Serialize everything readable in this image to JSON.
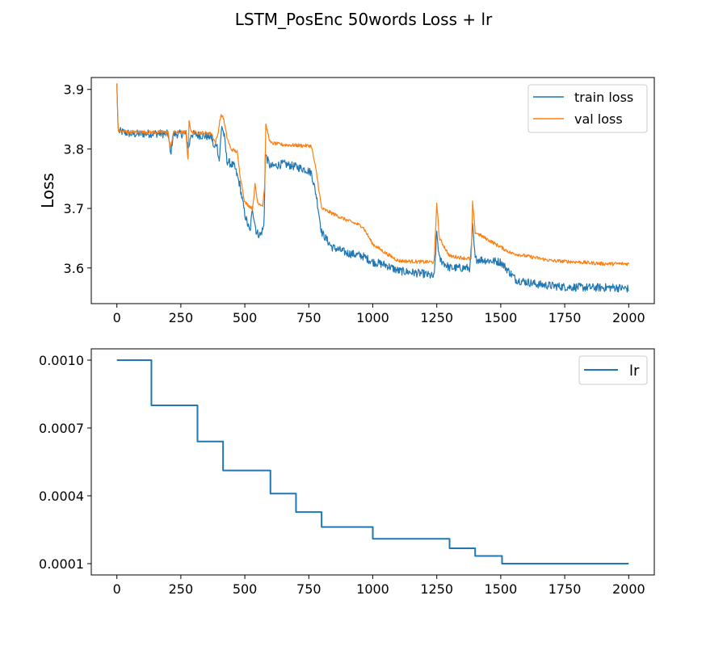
{
  "figure": {
    "title": "LSTM_PosEnc 50words Loss + lr"
  },
  "chart_data": [
    {
      "type": "line",
      "ylabel": "Loss",
      "xlabel": "",
      "xlim": [
        -100,
        2100
      ],
      "ylim": [
        3.54,
        3.92
      ],
      "x_ticks": [
        0,
        250,
        500,
        750,
        1000,
        1250,
        1500,
        1750,
        2000
      ],
      "y_ticks": [
        3.6,
        3.7,
        3.8,
        3.9
      ],
      "y_tick_labels": [
        "3.6",
        "3.7",
        "3.8",
        "3.9"
      ],
      "legend_position": "top-right",
      "series": [
        {
          "name": "train loss",
          "color": "#1f77b4",
          "noise": 0.007,
          "points": [
            [
              0,
              3.91
            ],
            [
              5,
              3.83
            ],
            [
              60,
              3.825
            ],
            [
              150,
              3.826
            ],
            [
              200,
              3.825
            ],
            [
              210,
              3.79
            ],
            [
              220,
              3.825
            ],
            [
              270,
              3.825
            ],
            [
              280,
              3.8
            ],
            [
              290,
              3.825
            ],
            [
              370,
              3.82
            ],
            [
              380,
              3.8
            ],
            [
              390,
              3.81
            ],
            [
              400,
              3.78
            ],
            [
              410,
              3.84
            ],
            [
              420,
              3.82
            ],
            [
              430,
              3.78
            ],
            [
              460,
              3.77
            ],
            [
              480,
              3.74
            ],
            [
              500,
              3.69
            ],
            [
              520,
              3.66
            ],
            [
              530,
              3.7
            ],
            [
              545,
              3.66
            ],
            [
              560,
              3.655
            ],
            [
              575,
              3.67
            ],
            [
              580,
              3.79
            ],
            [
              600,
              3.77
            ],
            [
              650,
              3.775
            ],
            [
              700,
              3.77
            ],
            [
              740,
              3.765
            ],
            [
              760,
              3.76
            ],
            [
              780,
              3.72
            ],
            [
              800,
              3.66
            ],
            [
              840,
              3.635
            ],
            [
              900,
              3.625
            ],
            [
              960,
              3.62
            ],
            [
              1000,
              3.61
            ],
            [
              1050,
              3.605
            ],
            [
              1100,
              3.595
            ],
            [
              1200,
              3.59
            ],
            [
              1240,
              3.585
            ],
            [
              1250,
              3.66
            ],
            [
              1260,
              3.615
            ],
            [
              1300,
              3.6
            ],
            [
              1380,
              3.6
            ],
            [
              1390,
              3.67
            ],
            [
              1400,
              3.615
            ],
            [
              1500,
              3.61
            ],
            [
              1520,
              3.6
            ],
            [
              1560,
              3.58
            ],
            [
              1650,
              3.572
            ],
            [
              1750,
              3.568
            ],
            [
              1850,
              3.567
            ],
            [
              1950,
              3.567
            ],
            [
              2000,
              3.565
            ]
          ]
        },
        {
          "name": "val loss",
          "color": "#ff7f0e",
          "noise": 0.003,
          "points": [
            [
              0,
              3.91
            ],
            [
              5,
              3.83
            ],
            [
              60,
              3.828
            ],
            [
              150,
              3.828
            ],
            [
              200,
              3.828
            ],
            [
              210,
              3.8
            ],
            [
              220,
              3.828
            ],
            [
              270,
              3.828
            ],
            [
              278,
              3.78
            ],
            [
              282,
              3.85
            ],
            [
              290,
              3.828
            ],
            [
              370,
              3.826
            ],
            [
              385,
              3.81
            ],
            [
              395,
              3.826
            ],
            [
              405,
              3.855
            ],
            [
              415,
              3.855
            ],
            [
              430,
              3.82
            ],
            [
              445,
              3.8
            ],
            [
              470,
              3.795
            ],
            [
              480,
              3.76
            ],
            [
              500,
              3.71
            ],
            [
              530,
              3.7
            ],
            [
              540,
              3.74
            ],
            [
              550,
              3.71
            ],
            [
              570,
              3.705
            ],
            [
              578,
              3.74
            ],
            [
              582,
              3.84
            ],
            [
              600,
              3.81
            ],
            [
              650,
              3.807
            ],
            [
              700,
              3.806
            ],
            [
              760,
              3.805
            ],
            [
              780,
              3.76
            ],
            [
              800,
              3.7
            ],
            [
              850,
              3.69
            ],
            [
              900,
              3.68
            ],
            [
              960,
              3.67
            ],
            [
              1000,
              3.64
            ],
            [
              1050,
              3.625
            ],
            [
              1100,
              3.612
            ],
            [
              1200,
              3.61
            ],
            [
              1240,
              3.61
            ],
            [
              1250,
              3.71
            ],
            [
              1260,
              3.65
            ],
            [
              1300,
              3.62
            ],
            [
              1385,
              3.615
            ],
            [
              1390,
              3.71
            ],
            [
              1400,
              3.66
            ],
            [
              1500,
              3.635
            ],
            [
              1540,
              3.625
            ],
            [
              1600,
              3.62
            ],
            [
              1700,
              3.612
            ],
            [
              1800,
              3.61
            ],
            [
              1900,
              3.607
            ],
            [
              2000,
              3.607
            ]
          ]
        }
      ]
    },
    {
      "type": "line",
      "xlabel": "",
      "ylabel": "",
      "xlim": [
        -100,
        2100
      ],
      "ylim": [
        5e-05,
        0.00105
      ],
      "x_ticks": [
        0,
        250,
        500,
        750,
        1000,
        1250,
        1500,
        1750,
        2000
      ],
      "y_ticks": [
        0.001,
        0.0007,
        0.0004,
        0.0001
      ],
      "y_tick_labels": [
        "0.0010",
        "0.0007",
        "0.0004",
        "0.0001"
      ],
      "legend_position": "top-right",
      "series": [
        {
          "name": "lr",
          "color": "#1f77b4",
          "step": true,
          "points": [
            [
              0,
              0.001
            ],
            [
              135,
              0.0008
            ],
            [
              315,
              0.00064
            ],
            [
              415,
              0.000512
            ],
            [
              600,
              0.00041
            ],
            [
              700,
              0.000328
            ],
            [
              800,
              0.000262
            ],
            [
              1000,
              0.00021
            ],
            [
              1300,
              0.000168
            ],
            [
              1400,
              0.000134
            ],
            [
              1505,
              0.0001
            ],
            [
              2000,
              0.0001
            ]
          ]
        }
      ]
    }
  ]
}
